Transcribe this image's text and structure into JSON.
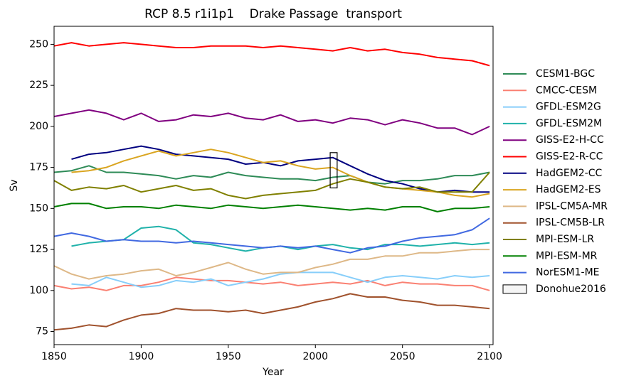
{
  "chart_data": {
    "type": "line",
    "title": "RCP 8.5 r1i1p1    Drake Passage  transport",
    "x_label": "Year",
    "y_label": "Sv",
    "x": [
      1850,
      1860,
      1870,
      1880,
      1890,
      1900,
      1910,
      1920,
      1930,
      1940,
      1950,
      1960,
      1970,
      1980,
      1990,
      2000,
      2010,
      2020,
      2030,
      2040,
      2050,
      2060,
      2070,
      2080,
      2090,
      2100
    ],
    "xlim": [
      1850,
      2102
    ],
    "xticks": [
      1850,
      1900,
      1950,
      2000,
      2050,
      2100
    ],
    "ylim": [
      67,
      261
    ],
    "yticks": [
      75,
      100,
      125,
      150,
      175,
      200,
      225,
      250
    ],
    "grid": false,
    "legend": "outside right",
    "series": [
      {
        "name": "CESM1-BGC",
        "color": "#2e8b57",
        "values": [
          172,
          173,
          176,
          172,
          172,
          171,
          170,
          168,
          170,
          169,
          172,
          170,
          169,
          168,
          168,
          167,
          169,
          170,
          166,
          165,
          167,
          167,
          168,
          170,
          170,
          172
        ]
      },
      {
        "name": "CMCC-CESM",
        "color": "#fa8072",
        "values": [
          103,
          101,
          102,
          100,
          103,
          103,
          105,
          108,
          107,
          106,
          106,
          105,
          104,
          105,
          103,
          104,
          105,
          104,
          106,
          103,
          105,
          104,
          104,
          103,
          103,
          100
        ]
      },
      {
        "name": "GFDL-ESM2G",
        "color": "#87cefa",
        "values": [
          null,
          104,
          103,
          108,
          105,
          102,
          103,
          106,
          105,
          107,
          103,
          105,
          107,
          110,
          111,
          111,
          111,
          108,
          105,
          108,
          109,
          108,
          107,
          109,
          108,
          109
        ]
      },
      {
        "name": "GFDL-ESM2M",
        "color": "#20b2aa",
        "values": [
          null,
          127,
          129,
          130,
          131,
          138,
          139,
          137,
          129,
          128,
          126,
          124,
          126,
          127,
          125,
          127,
          128,
          126,
          125,
          128,
          128,
          127,
          128,
          129,
          128,
          129
        ]
      },
      {
        "name": "GISS-E2-H-CC",
        "color": "#800080",
        "values": [
          206,
          208,
          210,
          208,
          204,
          208,
          203,
          204,
          207,
          206,
          208,
          205,
          204,
          207,
          203,
          204,
          202,
          205,
          204,
          201,
          204,
          202,
          199,
          199,
          195,
          200
        ]
      },
      {
        "name": "GISS-E2-R-CC",
        "color": "#ff0000",
        "values": [
          249,
          251,
          249,
          250,
          251,
          250,
          249,
          248,
          248,
          249,
          249,
          249,
          248,
          249,
          248,
          247,
          246,
          248,
          246,
          247,
          245,
          244,
          242,
          241,
          240,
          237
        ]
      },
      {
        "name": "HadGEM2-CC",
        "color": "#000080",
        "values": [
          null,
          180,
          183,
          184,
          186,
          188,
          186,
          183,
          182,
          181,
          180,
          177,
          178,
          176,
          179,
          180,
          181,
          176,
          171,
          167,
          165,
          162,
          160,
          161,
          160,
          160
        ]
      },
      {
        "name": "HadGEM2-ES",
        "color": "#daa520",
        "values": [
          null,
          172,
          173,
          175,
          179,
          182,
          185,
          182,
          184,
          186,
          184,
          181,
          178,
          179,
          176,
          174,
          175,
          170,
          166,
          163,
          162,
          161,
          160,
          158,
          157,
          159
        ]
      },
      {
        "name": "IPSL-CM5A-MR",
        "color": "#deb887",
        "values": [
          115,
          110,
          107,
          109,
          110,
          112,
          113,
          109,
          111,
          114,
          117,
          113,
          110,
          111,
          111,
          114,
          116,
          119,
          119,
          121,
          121,
          123,
          123,
          124,
          125,
          125
        ]
      },
      {
        "name": "IPSL-CM5B-LR",
        "color": "#a0522d",
        "values": [
          76,
          77,
          79,
          78,
          82,
          85,
          86,
          89,
          88,
          88,
          87,
          88,
          86,
          88,
          90,
          93,
          95,
          98,
          96,
          96,
          94,
          93,
          91,
          91,
          90,
          89
        ]
      },
      {
        "name": "MPI-ESM-LR",
        "color": "#808000",
        "values": [
          167,
          161,
          163,
          162,
          164,
          160,
          162,
          164,
          161,
          162,
          158,
          156,
          158,
          159,
          160,
          161,
          165,
          168,
          166,
          163,
          162,
          163,
          160,
          160,
          160,
          172
        ]
      },
      {
        "name": "MPI-ESM-MR",
        "color": "#008000",
        "values": [
          151,
          153,
          153,
          150,
          151,
          151,
          150,
          152,
          151,
          150,
          152,
          151,
          150,
          151,
          152,
          151,
          150,
          149,
          150,
          149,
          151,
          151,
          148,
          150,
          150,
          151
        ]
      },
      {
        "name": "NorESM1-ME",
        "color": "#4169e1",
        "values": [
          133,
          135,
          133,
          130,
          131,
          130,
          130,
          129,
          130,
          129,
          128,
          127,
          126,
          127,
          126,
          127,
          125,
          123,
          126,
          127,
          130,
          132,
          133,
          134,
          137,
          144
        ]
      }
    ],
    "obs": {
      "name": "Donohue2016",
      "x": [
        2008.5,
        2012.5
      ],
      "y": [
        162.5,
        184
      ]
    }
  }
}
